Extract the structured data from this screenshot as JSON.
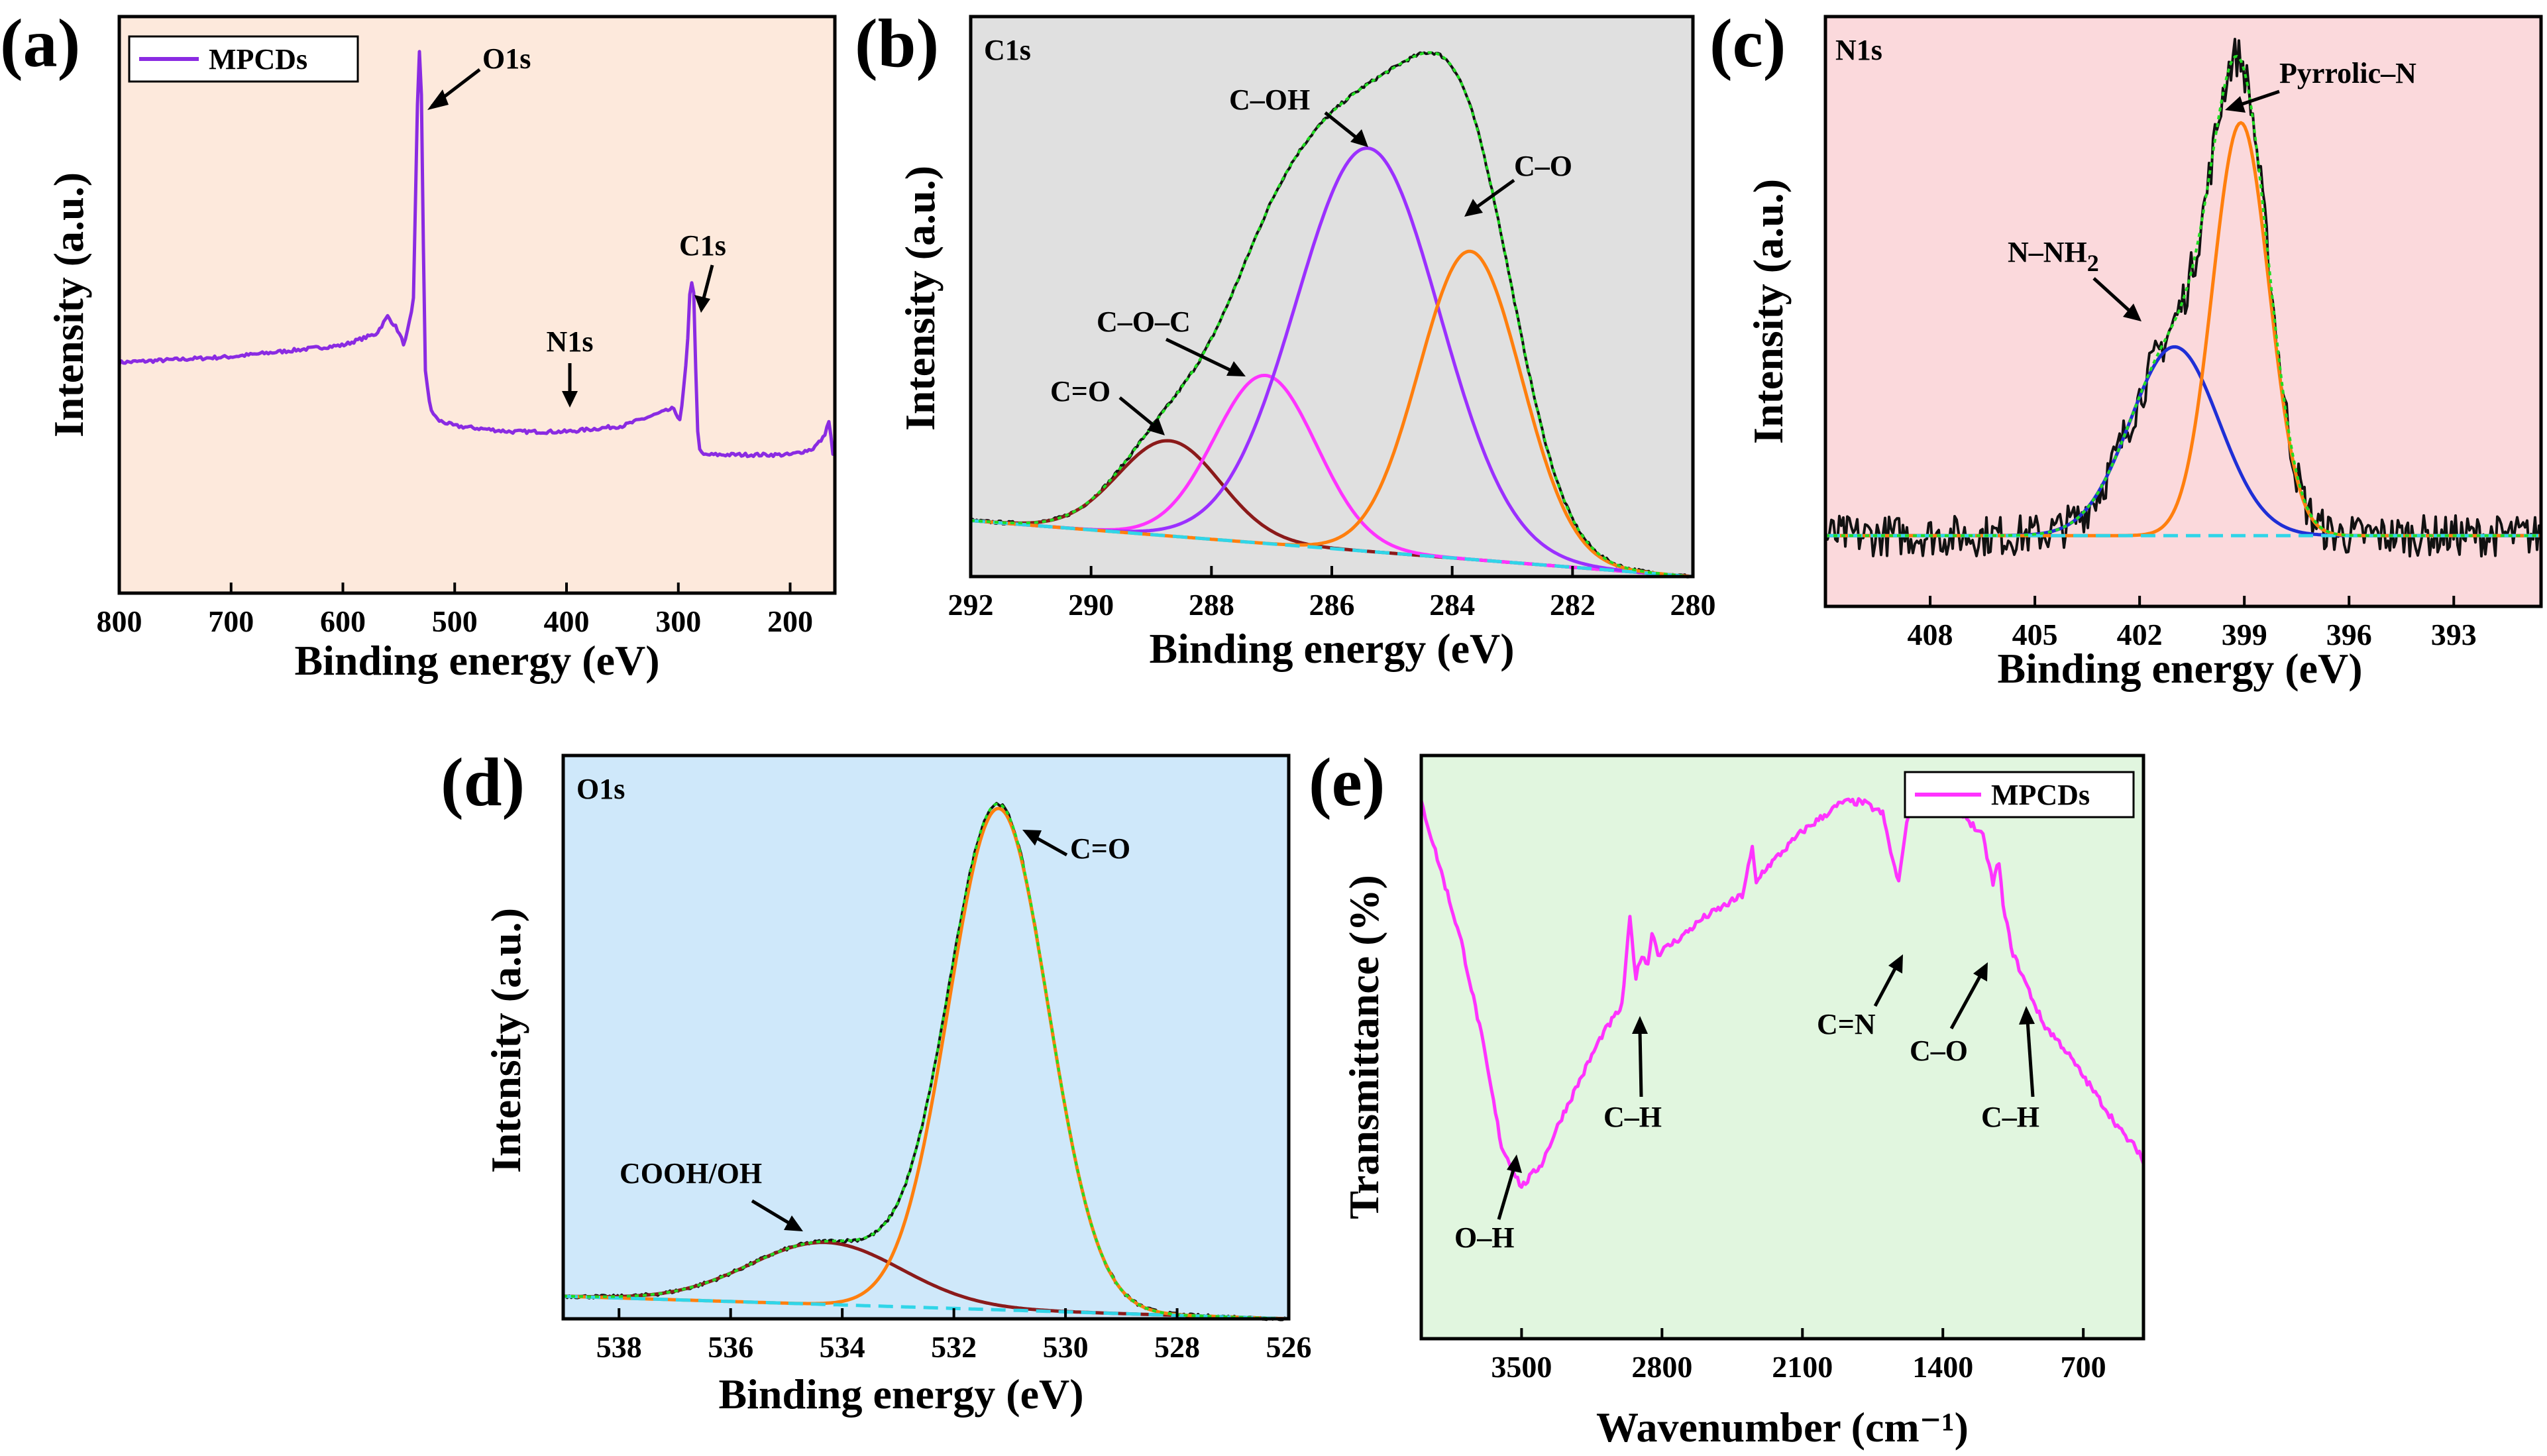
{
  "colors": {
    "purple": "#8a2be2",
    "violet": "#9b30ff",
    "orange": "#ff7f0e",
    "magenta": "#ff33ff",
    "darkred": "#8b1a1a",
    "blue": "#1f2fd6",
    "green": "#22dd22",
    "cyan": "#30d5e8",
    "black": "#111111",
    "bg_a": "#fde9dc",
    "bg_b": "#e0e0e0",
    "bg_c": "#fbd9dc",
    "bg_d": "#cfe8fa",
    "bg_e": "#e1f6df"
  },
  "chart_data": [
    {
      "panel": "(a)",
      "type": "line",
      "title": "",
      "xlabel": "Binding energy (eV)",
      "ylabel": "Intensity (a.u.)",
      "xlim": [
        800,
        160
      ],
      "xticks": [
        800,
        700,
        600,
        500,
        400,
        300,
        200
      ],
      "legend": {
        "entries": [
          "MPCDs"
        ],
        "placement": "top-left"
      },
      "series": [
        {
          "name": "MPCDs",
          "color": "purple",
          "x": [
            800,
            700,
            600,
            570,
            560,
            552,
            545,
            537,
            533,
            531,
            529,
            527,
            522,
            515,
            500,
            450,
            400,
            350,
            320,
            305,
            298,
            292,
            289,
            286,
            284,
            282,
            278,
            270,
            240,
            200,
            180,
            170,
            165,
            162
          ],
          "y": [
            0.4,
            0.41,
            0.43,
            0.45,
            0.48,
            0.46,
            0.43,
            0.5,
            0.88,
            0.96,
            0.8,
            0.4,
            0.32,
            0.3,
            0.29,
            0.28,
            0.28,
            0.29,
            0.31,
            0.32,
            0.3,
            0.42,
            0.55,
            0.52,
            0.35,
            0.25,
            0.24,
            0.24,
            0.24,
            0.24,
            0.25,
            0.27,
            0.3,
            0.24
          ]
        }
      ],
      "annotations": [
        {
          "text": "O1s",
          "x": 531
        },
        {
          "text": "N1s",
          "x": 400
        },
        {
          "text": "C1s",
          "x": 285
        }
      ]
    },
    {
      "panel": "(b)",
      "type": "line",
      "title": "C1s",
      "xlabel": "Binding energy (eV)",
      "ylabel": "Intensity (a.u.)",
      "xlim": [
        292,
        280
      ],
      "xticks": [
        292,
        290,
        288,
        286,
        284,
        282,
        280
      ],
      "components": [
        {
          "name": "C=O",
          "center": 288.7,
          "height": 0.17,
          "fwhm": 2.0,
          "color": "darkred"
        },
        {
          "name": "C–O–C",
          "center": 287.1,
          "height": 0.3,
          "fwhm": 2.0,
          "color": "magenta"
        },
        {
          "name": "C–OH",
          "center": 285.4,
          "height": 0.72,
          "fwhm": 2.8,
          "color": "violet"
        },
        {
          "name": "C–O",
          "center": 283.7,
          "height": 0.55,
          "fwhm": 2.0,
          "color": "orange"
        }
      ],
      "baseline": [
        [
          292,
          0.1
        ],
        [
          280,
          0.0
        ]
      ],
      "annotations": [
        {
          "text": "C=O",
          "x": 288.7
        },
        {
          "text": "C–O–C",
          "x": 287.1
        },
        {
          "text": "C–OH",
          "x": 285.4
        },
        {
          "text": "C–O",
          "x": 283.7
        }
      ]
    },
    {
      "panel": "(c)",
      "type": "line",
      "title": "N1s",
      "xlabel": "Binding energy (eV)",
      "ylabel": "Intensity (a.u.)",
      "xlim": [
        411,
        390.5
      ],
      "xticks": [
        408,
        405,
        402,
        399,
        396,
        393
      ],
      "components": [
        {
          "name": "N–NH2",
          "center": 401.0,
          "height": 0.32,
          "fwhm": 3.0,
          "color": "blue"
        },
        {
          "name": "Pyrrolic–N",
          "center": 399.1,
          "height": 0.7,
          "fwhm": 1.9,
          "color": "orange"
        }
      ],
      "baseline": [
        [
          411,
          0.12
        ],
        [
          390.5,
          0.12
        ]
      ],
      "annotations": [
        {
          "text": "N–NH",
          "sub": "2",
          "x": 401.0
        },
        {
          "text": "Pyrrolic–N",
          "x": 399.1
        }
      ]
    },
    {
      "panel": "(d)",
      "type": "line",
      "title": "O1s",
      "xlabel": "Binding energy (eV)",
      "ylabel": "Intensity (a.u.)",
      "xlim": [
        539,
        526
      ],
      "xticks": [
        538,
        536,
        534,
        532,
        530,
        528,
        526
      ],
      "components": [
        {
          "name": "COOH/OH",
          "center": 534.3,
          "height": 0.11,
          "fwhm": 3.2,
          "color": "darkred"
        },
        {
          "name": "C=O",
          "center": 531.2,
          "height": 0.89,
          "fwhm": 2.1,
          "color": "orange"
        }
      ],
      "baseline": [
        [
          539,
          0.04
        ],
        [
          526,
          0.0
        ]
      ],
      "annotations": [
        {
          "text": "COOH/OH",
          "x": 534.3
        },
        {
          "text": "C=O",
          "x": 531.2
        }
      ]
    },
    {
      "panel": "(e)",
      "type": "line",
      "title": "",
      "xlabel": "Wavenumber (cm⁻¹)",
      "ylabel": "Transmittance (%)",
      "xlim": [
        4000,
        400
      ],
      "xticks": [
        3500,
        2800,
        2100,
        1400,
        700
      ],
      "legend": {
        "entries": [
          "MPCDs"
        ],
        "placement": "top-right"
      },
      "series": [
        {
          "name": "MPCDs",
          "color": "magenta",
          "x": [
            4000,
            3900,
            3800,
            3700,
            3600,
            3500,
            3400,
            3300,
            3200,
            3100,
            3000,
            2960,
            2930,
            2900,
            2870,
            2850,
            2820,
            2700,
            2600,
            2400,
            2350,
            2330,
            2300,
            2100,
            1900,
            1800,
            1700,
            1650,
            1620,
            1600,
            1560,
            1500,
            1400,
            1300,
            1200,
            1150,
            1120,
            1100,
            1050,
            1000,
            900,
            800,
            700,
            600,
            500,
            420,
            400
          ],
          "y": [
            0.92,
            0.8,
            0.68,
            0.52,
            0.33,
            0.26,
            0.3,
            0.38,
            0.45,
            0.52,
            0.57,
            0.72,
            0.62,
            0.66,
            0.64,
            0.7,
            0.66,
            0.69,
            0.72,
            0.76,
            0.84,
            0.78,
            0.8,
            0.87,
            0.92,
            0.92,
            0.9,
            0.82,
            0.78,
            0.84,
            0.92,
            0.93,
            0.94,
            0.9,
            0.86,
            0.78,
            0.82,
            0.74,
            0.66,
            0.62,
            0.54,
            0.5,
            0.45,
            0.4,
            0.35,
            0.32,
            0.3
          ]
        }
      ],
      "annotations": [
        {
          "text": "O–H",
          "x": 3500
        },
        {
          "text": "C–H",
          "x": 2930
        },
        {
          "text": "C=N",
          "x": 1630
        },
        {
          "text": "C–O",
          "x": 1230
        },
        {
          "text": "C–H",
          "x": 1060
        }
      ]
    }
  ]
}
